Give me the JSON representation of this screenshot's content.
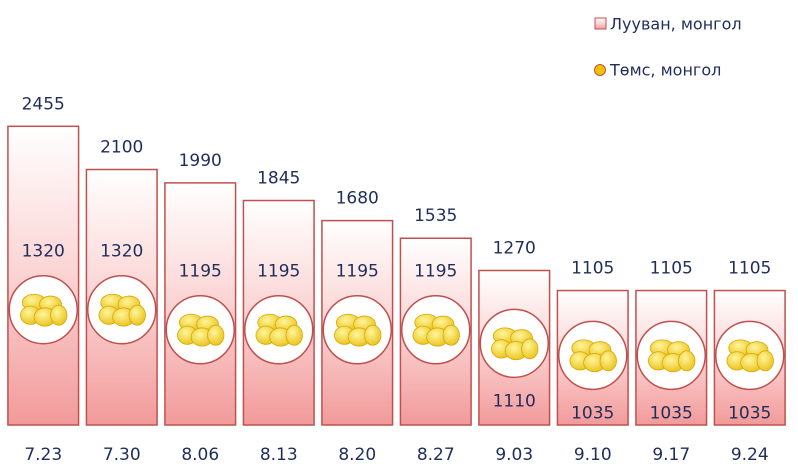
{
  "chart_data": {
    "type": "bar",
    "categories": [
      "7.23",
      "7.30",
      "8.06",
      "8.13",
      "8.20",
      "8.27",
      "9.03",
      "9.10",
      "9.17",
      "9.24"
    ],
    "series": [
      {
        "name": "Лууван, монгол",
        "color": "#c0504d",
        "values": [
          2455,
          2100,
          1990,
          1845,
          1680,
          1535,
          1270,
          1105,
          1105,
          1105
        ]
      },
      {
        "name": "Төмс, монгол",
        "color": "#f2c200",
        "axis": "y2",
        "values": [
          1320,
          1320,
          1195,
          1195,
          1195,
          1195,
          1110,
          1035,
          1035,
          1035
        ]
      }
    ],
    "ylim": [
      0,
      3000
    ],
    "y2lim": [
      600,
      2880
    ],
    "legend": "top-right"
  }
}
